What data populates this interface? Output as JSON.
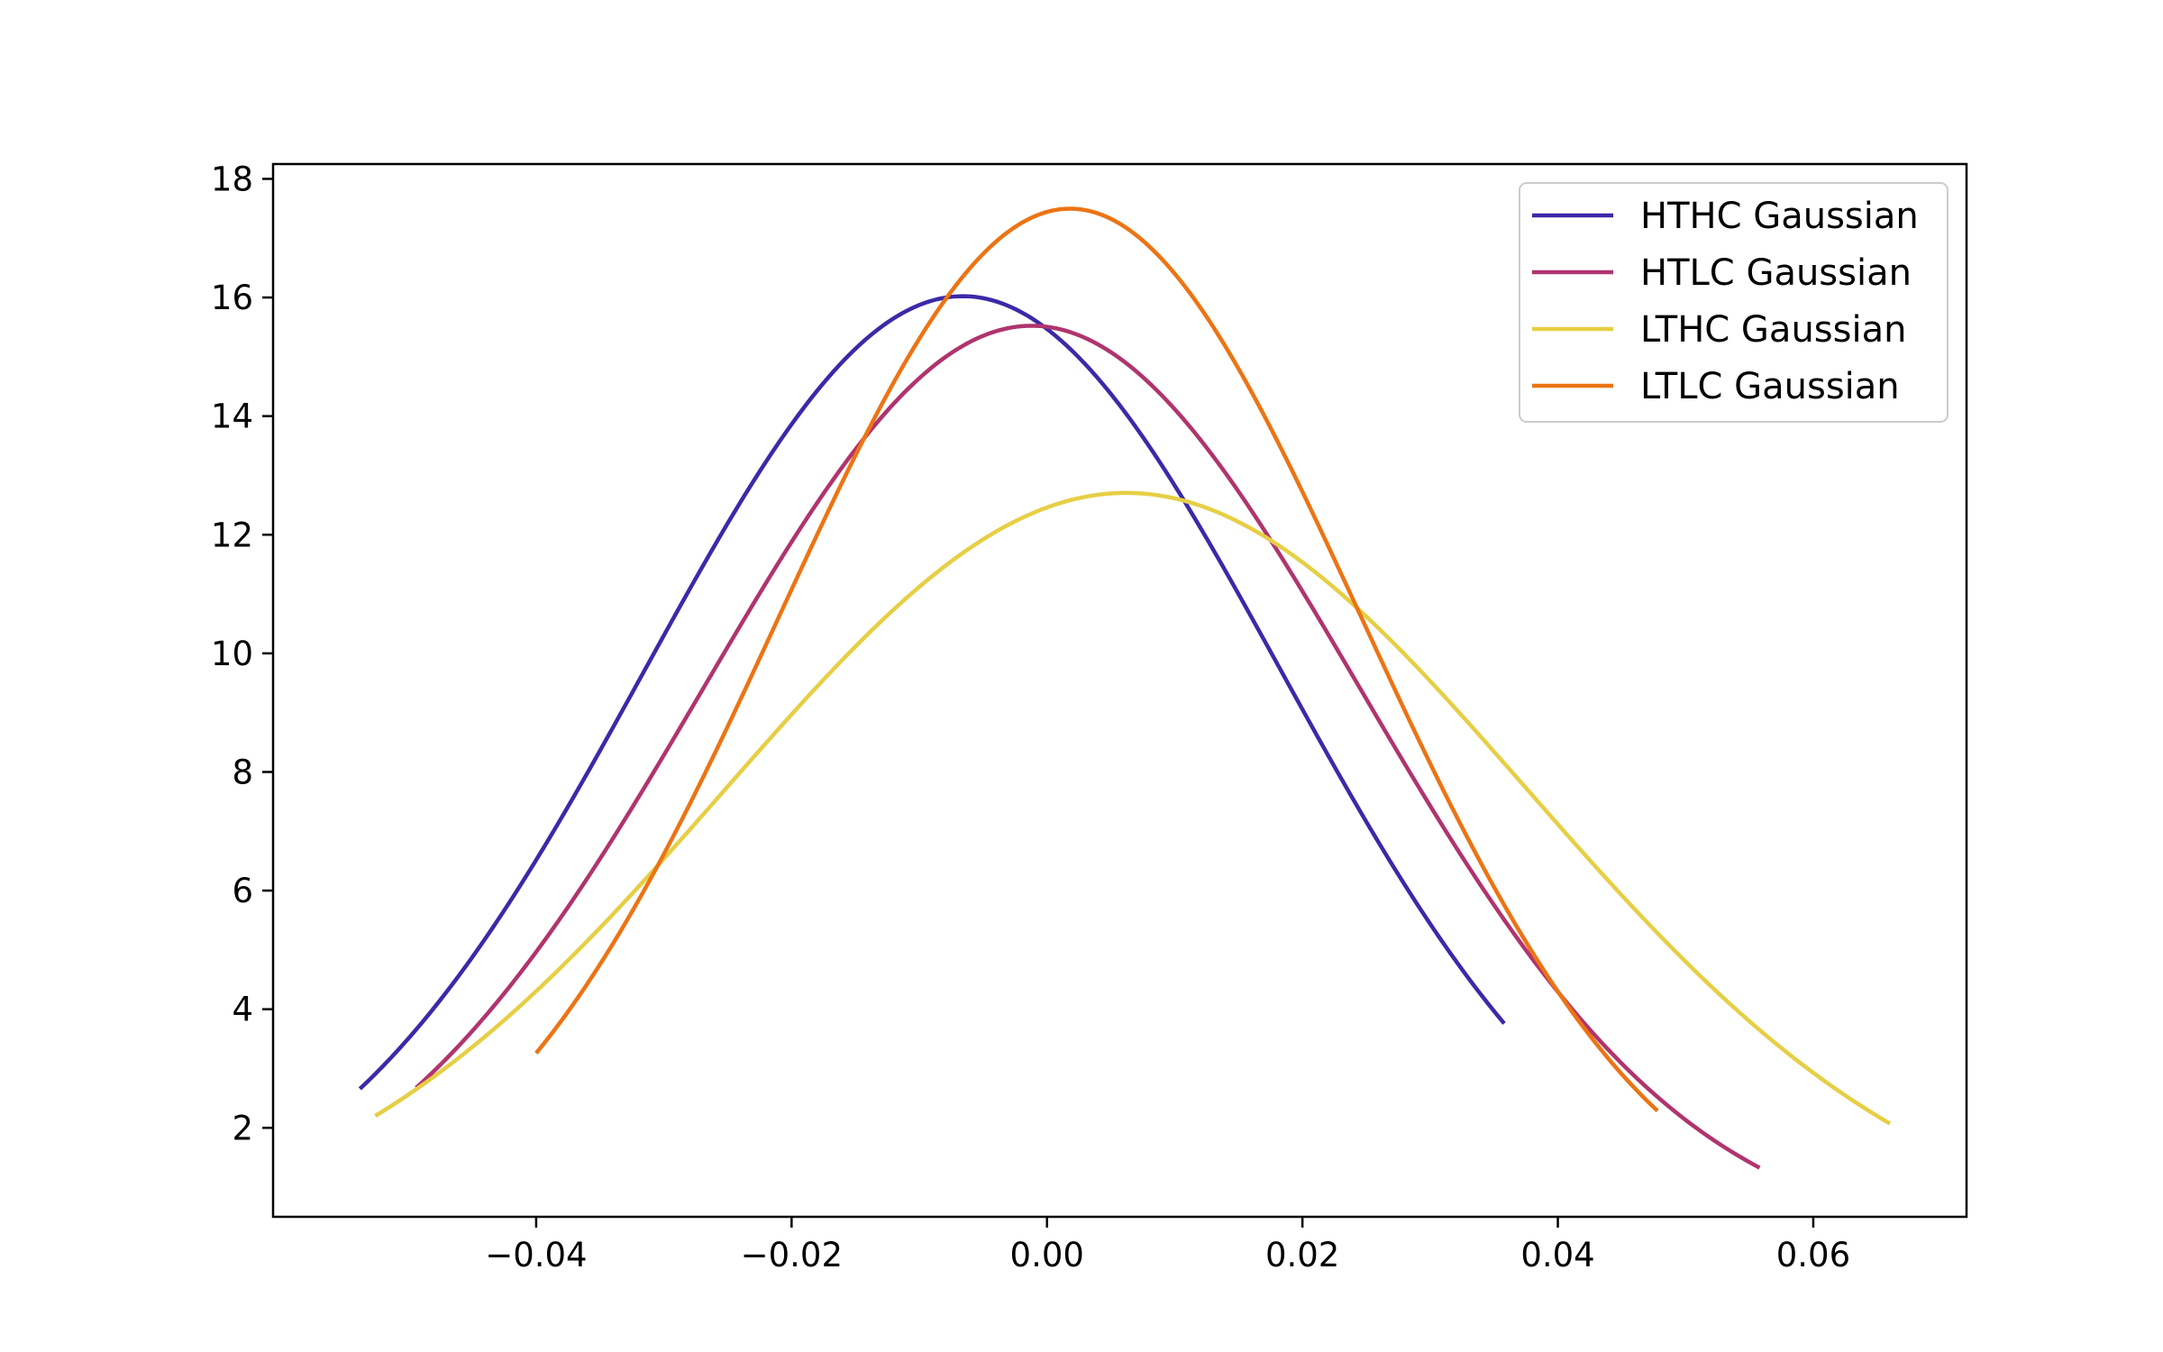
{
  "chart_data": {
    "type": "line",
    "title": "",
    "xlabel": "",
    "ylabel": "",
    "xlim": [
      -0.0606,
      0.072
    ],
    "ylim": [
      0.5,
      18.25
    ],
    "x_ticks": [
      -0.04,
      -0.02,
      0.0,
      0.02,
      0.04,
      0.06
    ],
    "x_tick_labels": [
      "−0.04",
      "−0.02",
      "0.00",
      "0.02",
      "0.04",
      "0.06"
    ],
    "y_ticks": [
      2,
      4,
      6,
      8,
      10,
      12,
      14,
      16,
      18
    ],
    "y_tick_labels": [
      "2",
      "4",
      "6",
      "8",
      "10",
      "12",
      "14",
      "16",
      "18"
    ],
    "grid": false,
    "legend_position": "top-right",
    "series": [
      {
        "name": "HTHC Gaussian",
        "color": "#3a2aa8",
        "mean": -0.0066,
        "sigma": 0.0249,
        "x_range": [
          -0.0538,
          0.0358
        ]
      },
      {
        "name": "HTLC Gaussian",
        "color": "#b0346e",
        "mean": -0.0012,
        "sigma": 0.0257,
        "x_range": [
          -0.0494,
          0.0558
        ]
      },
      {
        "name": "LTHC Gaussian",
        "color": "#e6cf45",
        "mean": 0.0062,
        "sigma": 0.0314,
        "x_range": [
          -0.0526,
          0.066
        ]
      },
      {
        "name": "LTLC Gaussian",
        "color": "#ec7414",
        "mean": 0.0018,
        "sigma": 0.0228,
        "x_range": [
          -0.04,
          0.0478
        ]
      }
    ]
  }
}
